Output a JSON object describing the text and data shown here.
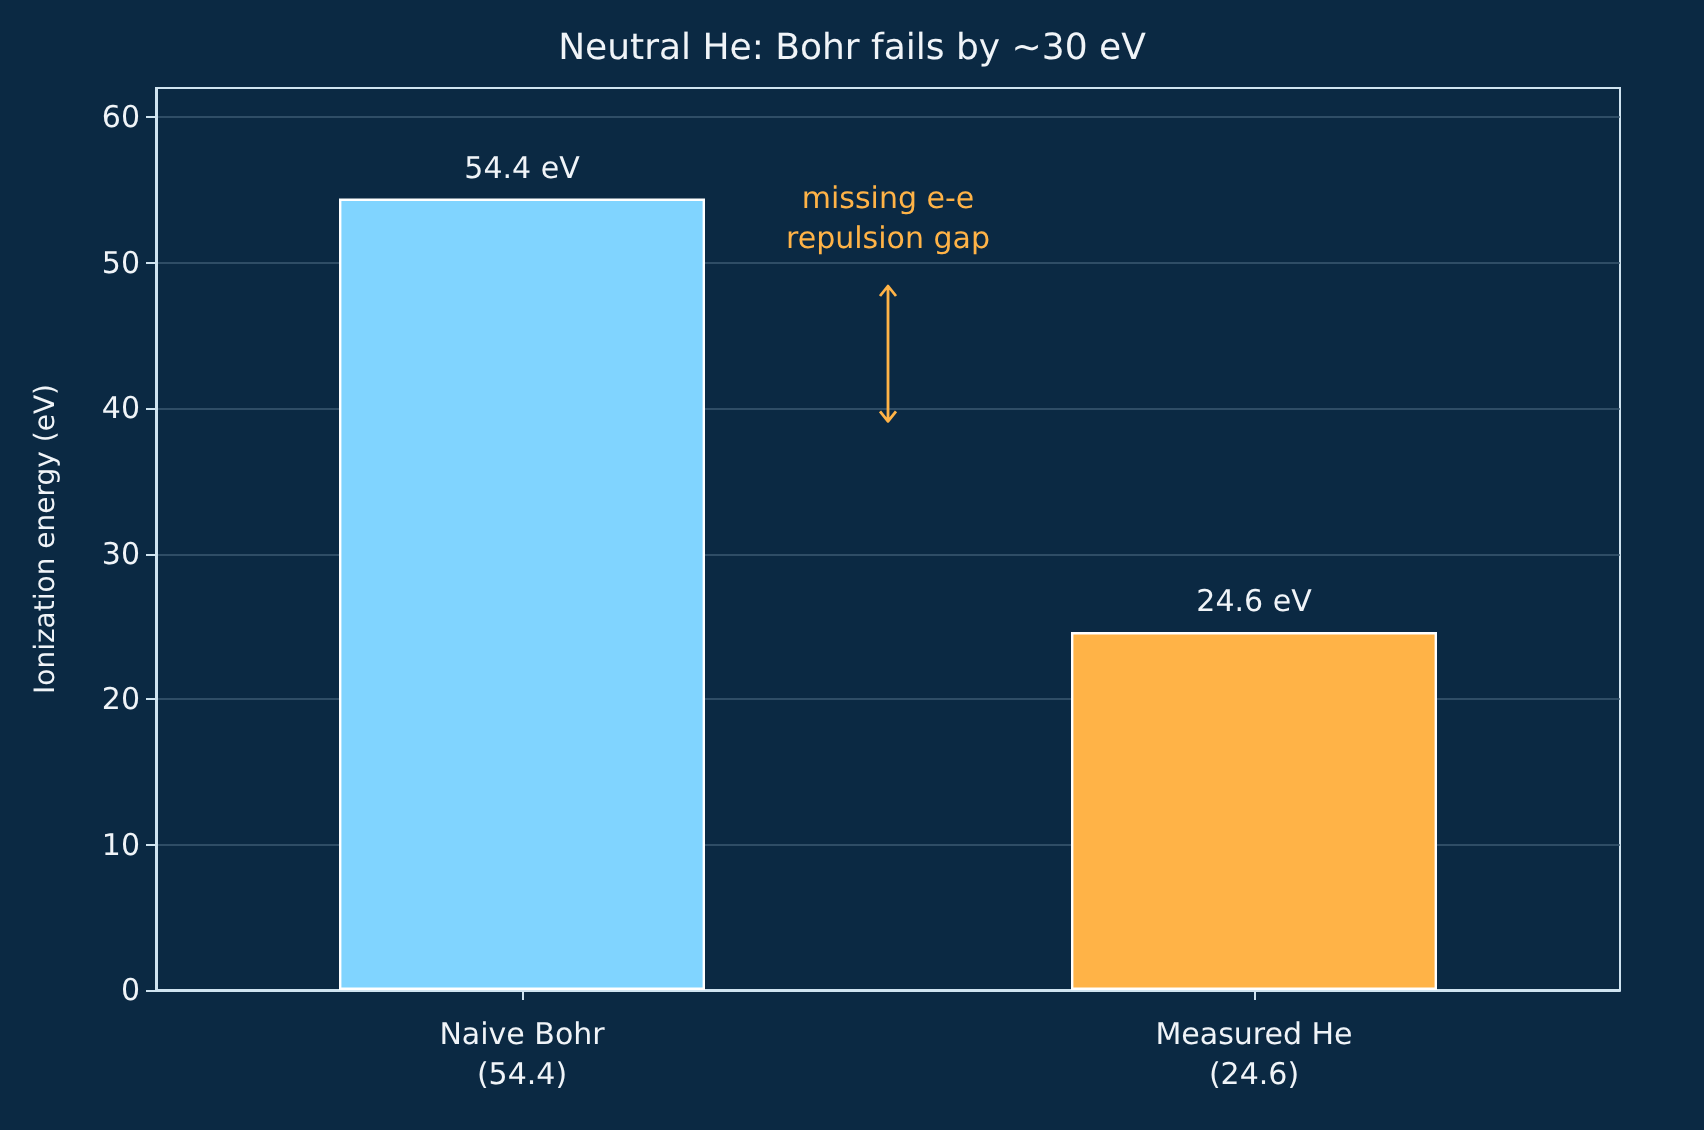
{
  "chart_data": {
    "type": "bar",
    "title": "Neutral He: Bohr fails by ~30 eV",
    "ylabel": "Ionization energy (eV)",
    "categories": [
      "Naive Bohr\n(54.4)",
      "Measured He\n(24.6)"
    ],
    "values": [
      54.4,
      24.6
    ],
    "colors": [
      "#80d4ff",
      "#ffb347"
    ],
    "value_labels": [
      "54.4 eV",
      "24.6 eV"
    ],
    "ylim": [
      0,
      62
    ],
    "yticks": [
      0,
      10,
      20,
      30,
      40,
      50,
      60
    ],
    "grid": "y",
    "annotations": [
      "missing e-e\nrepulsion gap"
    ]
  }
}
